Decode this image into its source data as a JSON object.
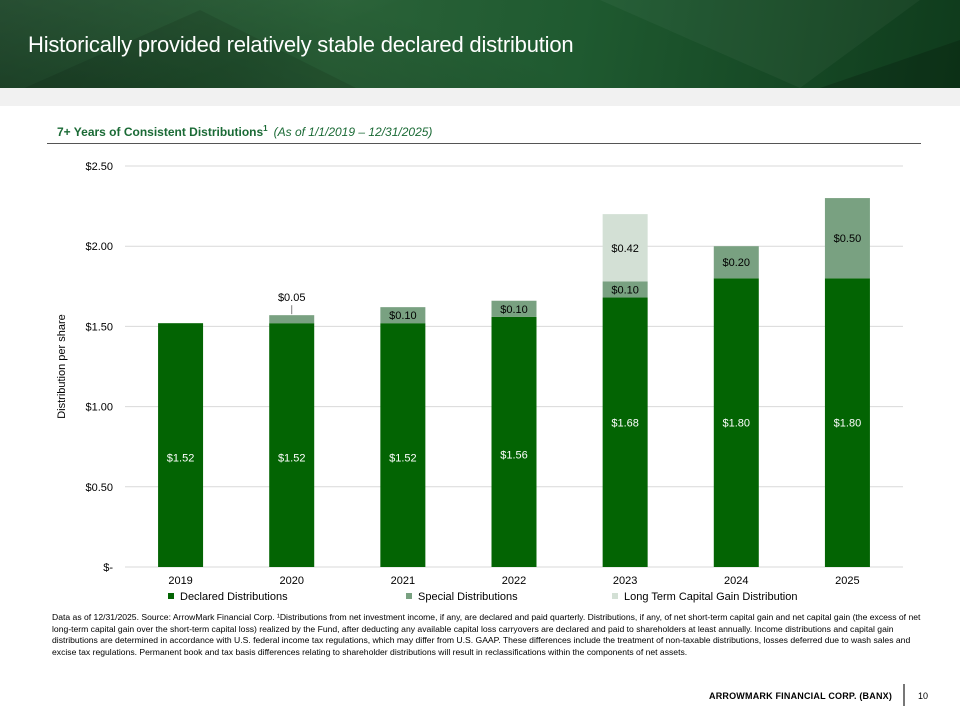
{
  "header": {
    "title": "Historically provided relatively stable declared distribution"
  },
  "subtitle": {
    "main": "7+ Years of Consistent  Distributions",
    "superscript": "1",
    "as_of": "(As of 1/1/2019 – 12/31/2025)"
  },
  "chart_data": {
    "type": "bar",
    "stacked": true,
    "title": "",
    "xlabel": "",
    "ylabel": "Distribution per share",
    "ylim": [
      0,
      2.5
    ],
    "y_ticks": [
      0,
      0.5,
      1.0,
      1.5,
      2.0,
      2.5
    ],
    "y_tick_labels": [
      "$-",
      "$0.50",
      "$1.00",
      "$1.50",
      "$2.00",
      "$2.50"
    ],
    "grid": true,
    "legend_position": "bottom",
    "categories": [
      "2019",
      "2020",
      "2021",
      "2022",
      "2023",
      "2024",
      "2025"
    ],
    "series": [
      {
        "name": "Declared Distributions",
        "color": "#036403",
        "label_color": "#ffffff",
        "values": [
          1.52,
          1.52,
          1.52,
          1.56,
          1.68,
          1.8,
          1.8
        ],
        "labels": [
          "$1.52",
          "$1.52",
          "$1.52",
          "$1.56",
          "$1.68",
          "$1.80",
          "$1.80"
        ]
      },
      {
        "name": "Special Distributions",
        "color": "#79a181",
        "label_color": "#000000",
        "values": [
          0,
          0.05,
          0.1,
          0.1,
          0.1,
          0.2,
          0.5
        ],
        "labels": [
          "",
          "$0.05",
          "$0.10",
          "$0.10",
          "$0.10",
          "$0.20",
          "$0.50"
        ]
      },
      {
        "name": "Long Term Capital Gain Distribution",
        "color": "#d3e0d5",
        "label_color": "#000000",
        "values": [
          0,
          0,
          0,
          0,
          0.42,
          0,
          0
        ],
        "labels": [
          "",
          "",
          "",
          "",
          "$0.42",
          "",
          ""
        ]
      }
    ]
  },
  "footnote": "Data as of 12/31/2025. Source: ArrowMark Financial Corp. ¹Distributions from net investment income, if any, are declared and paid quarterly. Distributions, if any, of net short-term capital gain and net capital gain (the excess of net long-term capital gain over the short-term capital loss) realized by the Fund, after deducting any available capital loss carryovers are declared and paid to shareholders at least annually. Income distributions and capital gain distributions are determined in accordance with U.S. federal income tax regulations, which may differ from U.S. GAAP. These differences include the treatment of non-taxable distributions, losses deferred due to wash sales and excise tax regulations. Permanent book and tax basis differences relating to shareholder distributions will result in reclassifications within the components of net assets.",
  "footer": {
    "company": "ARROWMARK  FINANCIAL CORP. (BANX)",
    "page_number": "10"
  }
}
